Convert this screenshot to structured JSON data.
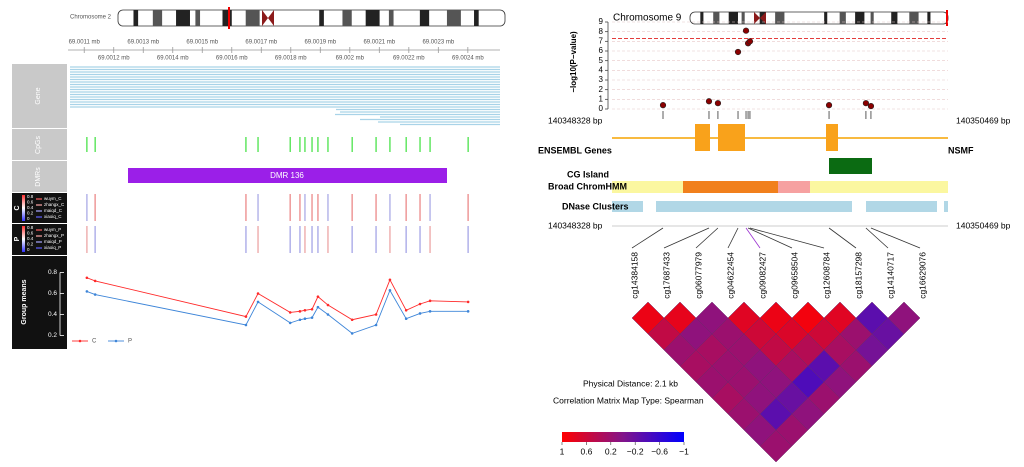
{
  "browser": {
    "chromosome_left": "Chromosome 2",
    "tracks": {
      "gene": "Gene",
      "cpgs": "CpGs",
      "dmrs": "DMRs",
      "dmr": "DMR 136",
      "c": "C",
      "p": "P"
    },
    "c_samples": [
      "wuym_C",
      "zhangx_C",
      "maiqd_C",
      "xiaoiq_C"
    ],
    "p_samples": [
      "wuym_P",
      "zhangx_P",
      "maiqd_P",
      "xiaoiq_P"
    ],
    "sample_scale": [
      0.8,
      0.6,
      0.4,
      0.2,
      0
    ],
    "right": {
      "start": "140348328 bp",
      "end": "140350469 bp",
      "ensembl": "ENSEMBL Genes",
      "gene": "NSMF",
      "cg_island": "CG Island",
      "chromhmm": "Broad ChromHMM",
      "dnase": "DNase Clusters"
    },
    "cpg_names": [
      "cg14384158",
      "cg17687433",
      "cg06077979",
      "cg04622454",
      "cg09082427",
      "cg09658504",
      "cg12608784",
      "cg18157298",
      "cg14140717",
      "cg16629076"
    ],
    "physical_distance": "Physical Distance: 2.1 kb",
    "map_type": "Correlation Matrix Map Type: Spearman"
  },
  "chart_data": [
    {
      "type": "line",
      "y_label": "Group means",
      "x": [
        69.001109,
        69.001137,
        69.001648,
        69.001689,
        69.001798,
        69.001831,
        69.001848,
        69.001872,
        69.001892,
        69.001926,
        69.002008,
        69.002089,
        69.002136,
        69.002191,
        69.002238,
        69.002272,
        69.002401
      ],
      "series": [
        {
          "name": "C",
          "color": "#ff2a2a",
          "values": [
            0.75,
            0.72,
            0.38,
            0.6,
            0.42,
            0.43,
            0.44,
            0.45,
            0.57,
            0.49,
            0.35,
            0.4,
            0.73,
            0.44,
            0.5,
            0.53,
            0.52
          ]
        },
        {
          "name": "P",
          "color": "#3d85d8",
          "values": [
            0.62,
            0.59,
            0.3,
            0.52,
            0.32,
            0.35,
            0.36,
            0.37,
            0.47,
            0.4,
            0.22,
            0.3,
            0.63,
            0.36,
            0.41,
            0.43,
            0.43
          ]
        }
      ],
      "xlim": [
        69.001045,
        69.002509
      ],
      "xticks": [
        {
          "value": 69.0011,
          "label": "69.0011 mb"
        },
        {
          "value": 69.0012,
          "label": "69.0012 mb"
        },
        {
          "value": 69.0013,
          "label": "69.0013 mb"
        },
        {
          "value": 69.0014,
          "label": "69.0014 mb"
        },
        {
          "value": 69.0015,
          "label": "69.0015 mb"
        },
        {
          "value": 69.0016,
          "label": "69.0016 mb"
        },
        {
          "value": 69.0017,
          "label": "69.0017 mb"
        },
        {
          "value": 69.0018,
          "label": "69.0018 mb"
        },
        {
          "value": 69.0019,
          "label": "69.0019 mb"
        },
        {
          "value": 69.002,
          "label": "69.002 mb"
        },
        {
          "value": 69.0021,
          "label": "69.0021 mb"
        },
        {
          "value": 69.0022,
          "label": "69.0022 mb"
        },
        {
          "value": 69.0023,
          "label": "69.0023 mb"
        },
        {
          "value": 69.0024,
          "label": "69.0024 mb"
        }
      ],
      "ylim": [
        0.1,
        0.9
      ],
      "yticks": [
        0.2,
        0.4,
        0.6,
        0.8
      ]
    },
    {
      "type": "scatter",
      "title": "Chromosome 9",
      "y_label": "−log10(P−value)",
      "x": [
        140348653,
        140348946,
        140349003,
        140349131,
        140349182,
        140349195,
        140349207,
        140349711,
        140349946,
        140349978
      ],
      "values": [
        0.4,
        0.8,
        0.6,
        5.9,
        8.1,
        6.8,
        7.0,
        0.4,
        0.6,
        0.3
      ],
      "color": "#8b0000",
      "xlim": [
        140348328,
        140350469
      ],
      "ylim": [
        0,
        9
      ],
      "yticks": [
        0,
        1,
        2,
        3,
        4,
        5,
        6,
        7,
        8,
        9
      ],
      "grid": true,
      "hlines": [
        7.3
      ]
    },
    {
      "type": "heatmap",
      "values": [
        [
          0.85,
          0.8,
          0.1,
          0.75,
          0.85,
          0.9,
          0.75,
          -0.3,
          0.1
        ],
        [
          0.5,
          0.1,
          0.2,
          0.6,
          0.7,
          0.6,
          0.2,
          -0.2
        ],
        [
          0.2,
          0.3,
          0.2,
          0.5,
          0.4,
          0.3,
          -0.1
        ],
        [
          0.3,
          0.2,
          0.1,
          0.3,
          -0.3,
          0.2
        ],
        [
          0.2,
          0.2,
          0.1,
          -0.4,
          0.1
        ],
        [
          0.3,
          0.1,
          -0.2,
          0.2
        ],
        [
          0.2,
          -0.3,
          0.1
        ],
        [
          0.1,
          0.2
        ],
        [
          0.2
        ]
      ],
      "clim": [
        -1,
        1
      ],
      "colors": [
        "#0000ff",
        "#82148a",
        "#ff0000"
      ],
      "colorbar_ticks": [
        1,
        0.6,
        0.2,
        {
          "value": -0.2,
          "label": "−0.2"
        },
        {
          "value": -0.6,
          "label": "−0.6"
        },
        {
          "value": -1,
          "label": "−1"
        }
      ]
    }
  ]
}
